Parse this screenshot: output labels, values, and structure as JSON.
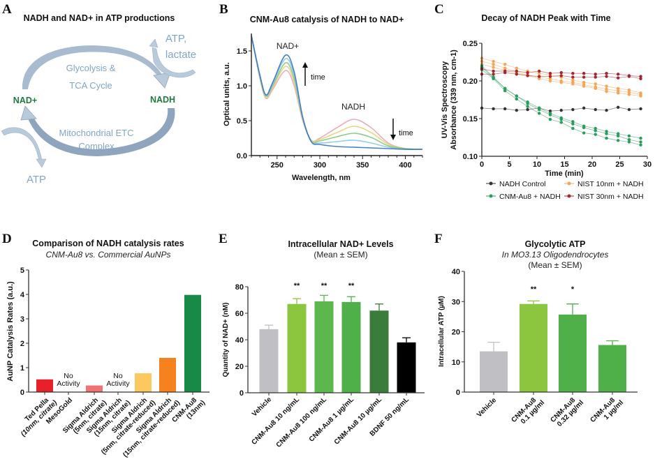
{
  "panel_letters": [
    "A",
    "B",
    "C",
    "D",
    "E",
    "F"
  ],
  "diagram": {
    "title": "NADH and NAD+ in ATP productions",
    "nad_plus": "NAD+",
    "nadh": "NADH",
    "top_cycle": [
      "Glycolysis &",
      "TCA Cycle"
    ],
    "bottom_cycle": [
      "Mitochondrial ETC",
      "Complex"
    ],
    "top_output": [
      "ATP,",
      "lactate"
    ],
    "bottom_output": "ATP",
    "colors": {
      "arc_top": "#a9bccf",
      "arc_bottom": "#8fa5bd",
      "text": "#7fa6c9",
      "node": "#1f7a3c"
    }
  },
  "chart_data": [
    {
      "id": "B",
      "type": "line",
      "title": "CNM-Au8 catalysis of NADH to NAD+",
      "xlabel": "Wavelength, nm",
      "ylabel": "Optical units, a.u.",
      "xlim": [
        220,
        420
      ],
      "ylim": [
        0,
        1.75
      ],
      "xticks": [
        "250",
        "300",
        "350",
        "400"
      ],
      "yticks": [
        "0.0",
        "0.5",
        "1.0",
        "1.5"
      ],
      "annotations": {
        "peak1": "NAD+",
        "peak2": "NADH",
        "up": "time",
        "down": "time"
      },
      "x": [
        220,
        230,
        237,
        245,
        260,
        270,
        280,
        290,
        300,
        320,
        340,
        360,
        380,
        400,
        420
      ],
      "series": [
        {
          "color": "#e9a3b6",
          "values": [
            1.72,
            1.1,
            0.82,
            0.95,
            1.22,
            1.0,
            0.5,
            0.22,
            0.25,
            0.4,
            0.52,
            0.4,
            0.18,
            0.1,
            0.09
          ]
        },
        {
          "color": "#e8d274",
          "values": [
            1.72,
            1.11,
            0.83,
            0.98,
            1.28,
            1.05,
            0.51,
            0.22,
            0.23,
            0.33,
            0.42,
            0.33,
            0.16,
            0.1,
            0.09
          ]
        },
        {
          "color": "#7fc97f",
          "values": [
            1.72,
            1.13,
            0.85,
            1.0,
            1.33,
            1.1,
            0.53,
            0.21,
            0.21,
            0.27,
            0.32,
            0.26,
            0.14,
            0.1,
            0.09
          ]
        },
        {
          "color": "#86c9e6",
          "values": [
            1.72,
            1.14,
            0.86,
            1.03,
            1.39,
            1.15,
            0.54,
            0.21,
            0.18,
            0.2,
            0.22,
            0.18,
            0.12,
            0.09,
            0.09
          ]
        },
        {
          "color": "#3672be",
          "values": [
            1.72,
            1.15,
            0.87,
            1.05,
            1.44,
            1.2,
            0.55,
            0.2,
            0.16,
            0.13,
            0.12,
            0.11,
            0.1,
            0.09,
            0.09
          ]
        }
      ]
    },
    {
      "id": "C",
      "type": "line",
      "title": "Decay of NADH Peak with Time",
      "xlabel": "Time (min)",
      "ylabel": [
        "UV-Vis Spectroscopy",
        "Absorbance (339 nm, cm-1)"
      ],
      "xlim": [
        0,
        30
      ],
      "ylim": [
        0.1,
        0.25
      ],
      "xticks": [
        "0",
        "5",
        "10",
        "15",
        "20",
        "25",
        "30"
      ],
      "yticks": [
        "0.10",
        "0.15",
        "0.20",
        "0.25"
      ],
      "legend": "bottom",
      "x": [
        0,
        2.1,
        4.2,
        6.3,
        8.3,
        10.4,
        12.4,
        14.4,
        16.5,
        18.5,
        20.6,
        22.6,
        24.7,
        26.7,
        28.8
      ],
      "series": [
        {
          "name": "NADH Control",
          "color": "#333333",
          "replicates": [
            [
              0.164,
              0.163,
              0.163,
              0.161,
              0.162,
              0.164,
              0.16,
              0.161,
              0.162,
              0.164,
              0.162,
              0.161,
              0.165,
              0.162,
              0.163
            ]
          ]
        },
        {
          "name": "NIST 10nm + NADH",
          "color": "#f4a55a",
          "replicates": [
            [
              0.23,
              0.226,
              0.222,
              0.217,
              0.213,
              0.21,
              0.208,
              0.205,
              0.201,
              0.198,
              0.196,
              0.193,
              0.19,
              0.188,
              0.184
            ],
            [
              0.226,
              0.222,
              0.217,
              0.212,
              0.208,
              0.205,
              0.203,
              0.2,
              0.198,
              0.195,
              0.192,
              0.189,
              0.187,
              0.185,
              0.182
            ],
            [
              0.222,
              0.218,
              0.214,
              0.21,
              0.207,
              0.203,
              0.2,
              0.198,
              0.196,
              0.193,
              0.19,
              0.186,
              0.184,
              0.182,
              0.18
            ]
          ]
        },
        {
          "name": "CNM-Au8 + NADH",
          "color": "#2a9d5c",
          "replicates": [
            [
              0.215,
              0.203,
              0.187,
              0.176,
              0.166,
              0.157,
              0.149,
              0.145,
              0.137,
              0.131,
              0.129,
              0.124,
              0.121,
              0.119,
              0.115
            ],
            [
              0.218,
              0.204,
              0.19,
              0.18,
              0.17,
              0.162,
              0.155,
              0.149,
              0.143,
              0.138,
              0.134,
              0.13,
              0.127,
              0.122,
              0.119
            ],
            [
              0.22,
              0.205,
              0.19,
              0.18,
              0.172,
              0.164,
              0.157,
              0.151,
              0.146,
              0.14,
              0.137,
              0.133,
              0.13,
              0.127,
              0.124
            ]
          ]
        },
        {
          "name": "NIST 30nm + NADH",
          "color": "#a3262e",
          "replicates": [
            [
              0.216,
              0.213,
              0.213,
              0.213,
              0.211,
              0.213,
              0.21,
              0.211,
              0.21,
              0.21,
              0.209,
              0.21,
              0.209,
              0.207,
              0.206
            ],
            [
              0.209,
              0.209,
              0.211,
              0.209,
              0.207,
              0.206,
              0.206,
              0.207,
              0.205,
              0.205,
              0.205,
              0.206,
              0.204,
              0.206,
              0.203
            ]
          ]
        }
      ]
    },
    {
      "id": "D",
      "type": "bar",
      "title": "Comparison of NADH catalysis rates",
      "subtitle": "CNM-Au8 vs. Commercial AuNPs",
      "ylabel": "AuNP Catalysis Rates (a.u.)",
      "ylim": [
        0,
        5
      ],
      "yticks": [
        "0",
        "1",
        "2",
        "3",
        "4",
        "5"
      ],
      "categories": [
        [
          "Ted Pella",
          "(10nm, citrate)"
        ],
        [
          "MesoGold"
        ],
        [
          "Sigma Aldrich",
          "(5nm, citrate)"
        ],
        [
          "Sigma Aldrich",
          "(15nm, citrate)"
        ],
        [
          "Sigma Aldrich",
          "(5nm, citrate-reduced)"
        ],
        [
          "Sigma Aldrich",
          "(15nm, citrate-reduced)"
        ],
        [
          "CNM-Au8",
          "(13nm)"
        ]
      ],
      "values": [
        0.52,
        null,
        0.27,
        null,
        0.77,
        1.4,
        3.98
      ],
      "bar_labels": [
        null,
        [
          "No",
          "Activity"
        ],
        null,
        [
          "No",
          "Activity"
        ],
        null,
        null,
        null
      ],
      "colors": [
        "#e8202a",
        null,
        "#f07272",
        null,
        "#fdc85e",
        "#f5821f",
        "#178a48"
      ]
    },
    {
      "id": "E",
      "type": "bar",
      "title": "Intracellular NAD+ Levels",
      "subtitle": "(Mean ± SEM)",
      "ylabel": "Quantity of NAD+ (nM)",
      "ylim": [
        0,
        80
      ],
      "yticks": [
        "0",
        "20",
        "40",
        "60",
        "80"
      ],
      "categories": [
        [
          "Vehicle"
        ],
        [
          "CNM-Au8 10 ng/mL"
        ],
        [
          "CNM-Au8 100 ng/mL"
        ],
        [
          "CNM-Au8 1 µg/mL"
        ],
        [
          "CNM-Au8 10 µg/mL"
        ],
        [
          "BDNF 50 ng/mL"
        ]
      ],
      "values": [
        48,
        67,
        69,
        68.5,
        62,
        38
      ],
      "errors": [
        3,
        4,
        4.5,
        4,
        5,
        3.5
      ],
      "significance": [
        "",
        "**",
        "**",
        "**",
        "",
        ""
      ],
      "colors": [
        "#c0c0c4",
        "#8cc63f",
        "#5cb84c",
        "#4fb04a",
        "#3a7d3a",
        "#000000"
      ]
    },
    {
      "id": "F",
      "type": "bar",
      "title": "Glycolytic ATP",
      "subtitle": [
        "In MO3.13 Oligodendrocytes",
        "(Mean ± SEM)"
      ],
      "ylabel": "Intracellular ATP (µM)",
      "ylim": [
        0,
        40
      ],
      "yticks": [
        "0",
        "10",
        "20",
        "30",
        "40"
      ],
      "categories": [
        [
          "Vehicle"
        ],
        [
          "CNM-Au8",
          "0.1 µg/ml"
        ],
        [
          "CNM-Au8",
          "0.32 µg/ml"
        ],
        [
          "CNM-Au8",
          "1 µg/ml"
        ]
      ],
      "values": [
        13.5,
        29.2,
        25.7,
        15.6
      ],
      "errors": [
        3,
        1,
        3.5,
        1.4
      ],
      "significance": [
        "",
        "**",
        "*",
        ""
      ],
      "colors": [
        "#c0c0c4",
        "#8cc63f",
        "#4fb04a",
        "#4fb04a"
      ]
    }
  ]
}
